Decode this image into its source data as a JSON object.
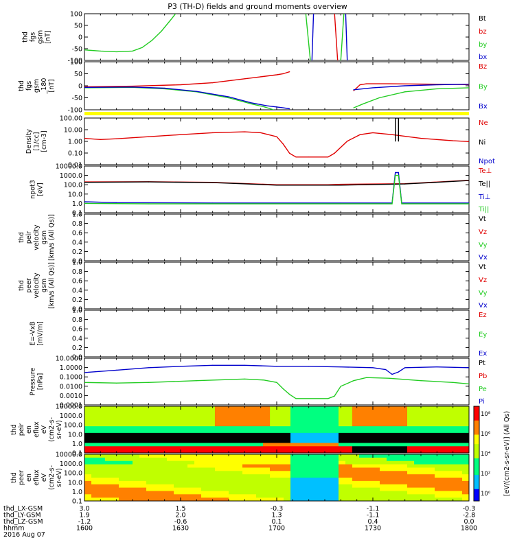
{
  "title": "P3 (TH-D) fields and ground moments overview",
  "colors": {
    "black": "#000000",
    "red": "#e00000",
    "green": "#22cc22",
    "blue": "#0000cc",
    "yellow": "#ffff00"
  },
  "panels": [
    {
      "id": "fgs_gsm",
      "ylabel": [
        "thd",
        "fgs",
        "gsm",
        "[nT]"
      ],
      "yticks": [
        "100",
        "50",
        "0",
        "-50",
        "-100"
      ],
      "legend": [
        {
          "text": "Bt",
          "color": "black"
        },
        {
          "text": "bz",
          "color": "red"
        },
        {
          "text": "by",
          "color": "green"
        },
        {
          "text": "bx",
          "color": "blue"
        }
      ]
    },
    {
      "id": "fgs_gsm_180",
      "ylabel": [
        "thd",
        "fgs",
        "gsm",
        "_180",
        "[nT]"
      ],
      "yticks": [
        "100",
        "50",
        "0",
        "-50",
        "-100"
      ],
      "legend": [
        {
          "text": "Bz",
          "color": "red"
        },
        {
          "text": "By",
          "color": "green"
        },
        {
          "text": "Bx",
          "color": "blue"
        }
      ]
    },
    {
      "id": "density",
      "ylabel": [
        "Density",
        "[1/cc]",
        "[cm-3]"
      ],
      "yticks": [
        "100.00",
        "10.00",
        "1.00",
        "0.10",
        "0.01"
      ],
      "legend": [
        {
          "text": "Ne",
          "color": "red"
        },
        {
          "text": "Ni",
          "color": "black"
        },
        {
          "text": "Npot",
          "color": "blue"
        }
      ]
    },
    {
      "id": "temp",
      "ylabel": [
        "npot3",
        "[eV]"
      ],
      "yticks": [
        "10000.0",
        "1000.0",
        "100.0",
        "10.0",
        "1.0",
        "0.1"
      ],
      "legend": [
        {
          "text": "Te⊥",
          "color": "red"
        },
        {
          "text": "Te||",
          "color": "black"
        },
        {
          "text": "Ti⊥",
          "color": "blue"
        },
        {
          "text": "Ti||",
          "color": "green"
        }
      ]
    },
    {
      "id": "peir_vel",
      "ylabel": [
        "thd",
        "peir",
        "velocity",
        "gsm",
        "[km/s (All Qs)]"
      ],
      "yticks": [
        "1.0",
        "0.8",
        "0.6",
        "0.4",
        "0.2",
        "0.0"
      ],
      "legend": [
        {
          "text": "Vt",
          "color": "black"
        },
        {
          "text": "Vz",
          "color": "red"
        },
        {
          "text": "Vy",
          "color": "green"
        },
        {
          "text": "Vx",
          "color": "blue"
        }
      ]
    },
    {
      "id": "peer_vel",
      "ylabel": [
        "thd",
        "peer",
        "velocity",
        "gsm",
        "[km/s (All Qs)]"
      ],
      "yticks": [
        "1.0",
        "0.8",
        "0.6",
        "0.4",
        "0.2",
        "0.0"
      ],
      "legend": [
        {
          "text": "Vt",
          "color": "black"
        },
        {
          "text": "Vz",
          "color": "red"
        },
        {
          "text": "Vy",
          "color": "green"
        },
        {
          "text": "Vx",
          "color": "blue"
        }
      ]
    },
    {
      "id": "efield",
      "ylabel": [
        "E=-VxB",
        "[mV/m]"
      ],
      "yticks": [
        "1.0",
        "0.8",
        "0.6",
        "0.4",
        "0.2",
        "0.0"
      ],
      "legend": [
        {
          "text": "Ez",
          "color": "red"
        },
        {
          "text": "Ey",
          "color": "green"
        },
        {
          "text": "Ex",
          "color": "blue"
        }
      ]
    },
    {
      "id": "pressure",
      "ylabel": [
        "Pressure",
        "[nPa]"
      ],
      "yticks": [
        "10.0000",
        "1.0000",
        "0.1000",
        "0.0100",
        "0.0010",
        "0.0001"
      ],
      "legend": [
        {
          "text": "Pt",
          "color": "black"
        },
        {
          "text": "Pb",
          "color": "red"
        },
        {
          "text": "Pe",
          "color": "green"
        },
        {
          "text": "Pi",
          "color": "blue"
        }
      ]
    },
    {
      "id": "peir_eflux",
      "ylabel": [
        "thd",
        "peir",
        "en",
        "eflux",
        "eV",
        "(cm2-s-",
        "sr-eV)"
      ],
      "yticks": [
        "10000.0",
        "1000.0",
        "100.0",
        "10.0",
        "1.0",
        "0.1"
      ],
      "legend": []
    },
    {
      "id": "peer_eflux",
      "ylabel": [
        "thd",
        "peer",
        "en",
        "eflux",
        "eV",
        "(cm2-s-",
        "sr-eV)"
      ],
      "yticks": [
        "10000.0",
        "1000.0",
        "100.0",
        "10.0",
        "1.0",
        "0.1"
      ],
      "legend": []
    }
  ],
  "colorbar": {
    "label": "[eV/(cm2-s-sr-eV)] (All Qs)",
    "ticks": [
      "10⁸",
      "10⁶",
      "10⁴",
      "10²",
      "10⁰"
    ]
  },
  "xaxis": {
    "row_labels": [
      "thd_LX-GSM",
      "thd_LY-GSM",
      "thd_LZ-GSM",
      "hhmm",
      "2016 Aug 07"
    ],
    "ticks": [
      {
        "values": [
          "3.0",
          "1.9",
          "-1.2",
          "1600"
        ]
      },
      {
        "values": [
          "1.5",
          "2.0",
          "-0.6",
          "1630"
        ]
      },
      {
        "values": [
          "-0.3",
          "1.3",
          "0.1",
          "1700"
        ]
      },
      {
        "values": [
          "-1.1",
          "-1.1",
          "0.4",
          "1730"
        ]
      },
      {
        "values": [
          "-0.3",
          "-2.8",
          "0.0",
          "1800"
        ]
      }
    ]
  },
  "chart_data": [
    {
      "type": "line",
      "panel": "fgs_gsm",
      "ylim": [
        -100,
        100
      ],
      "x_unit": "minutes after 1600",
      "series": [
        {
          "name": "by",
          "color": "green",
          "points": [
            [
              0,
              -55
            ],
            [
              5,
              -60
            ],
            [
              10,
              -63
            ],
            [
              15,
              -60
            ],
            [
              18,
              -45
            ],
            [
              21,
              -15
            ],
            [
              24,
              25
            ],
            [
              27,
              75
            ],
            [
              29,
              110
            ]
          ]
        },
        {
          "name": "by",
          "color": "green",
          "points": [
            [
              69,
              110
            ],
            [
              70.5,
              -100
            ]
          ]
        },
        {
          "name": "bx",
          "color": "blue",
          "points": [
            [
              71,
              -100
            ],
            [
              71.5,
              110
            ]
          ]
        },
        {
          "name": "bz",
          "color": "red",
          "points": [
            [
              78,
              110
            ],
            [
              79,
              -100
            ]
          ]
        },
        {
          "name": "by",
          "color": "green",
          "points": [
            [
              80,
              -100
            ],
            [
              81,
              110
            ]
          ]
        },
        {
          "name": "bx",
          "color": "blue",
          "points": [
            [
              81.5,
              110
            ],
            [
              82,
              -100
            ]
          ]
        }
      ]
    },
    {
      "type": "line",
      "panel": "fgs_gsm_180",
      "ylim": [
        -120,
        120
      ],
      "x_unit": "minutes after 1600",
      "series": [
        {
          "name": "Bz",
          "color": "red",
          "points": [
            [
              0,
              -5
            ],
            [
              15,
              -2
            ],
            [
              30,
              5
            ],
            [
              40,
              15
            ],
            [
              50,
              35
            ],
            [
              55,
              45
            ],
            [
              60,
              55
            ],
            [
              62,
              60
            ],
            [
              63,
              65
            ],
            [
              64,
              70
            ]
          ]
        },
        {
          "name": "By",
          "color": "green",
          "points": [
            [
              0,
              -10
            ],
            [
              15,
              -8
            ],
            [
              25,
              -15
            ],
            [
              35,
              -30
            ],
            [
              45,
              -60
            ],
            [
              52,
              -90
            ],
            [
              56,
              -105
            ],
            [
              58,
              -115
            ],
            [
              59,
              -120
            ]
          ]
        },
        {
          "name": "Bx",
          "color": "blue",
          "points": [
            [
              0,
              -8
            ],
            [
              15,
              -6
            ],
            [
              25,
              -12
            ],
            [
              35,
              -28
            ],
            [
              45,
              -55
            ],
            [
              52,
              -85
            ],
            [
              57,
              -100
            ],
            [
              62,
              -110
            ],
            [
              64,
              -115
            ]
          ]
        },
        {
          "name": "Bz",
          "color": "red",
          "points": [
            [
              84,
              -25
            ],
            [
              86,
              5
            ],
            [
              88,
              10
            ],
            [
              95,
              10
            ],
            [
              110,
              8
            ],
            [
              120,
              6
            ]
          ]
        },
        {
          "name": "By",
          "color": "green",
          "points": [
            [
              84,
              -110
            ],
            [
              87,
              -90
            ],
            [
              92,
              -60
            ],
            [
              100,
              -30
            ],
            [
              110,
              -15
            ],
            [
              120,
              -10
            ]
          ]
        },
        {
          "name": "Bx",
          "color": "blue",
          "points": [
            [
              84,
              -20
            ],
            [
              90,
              -10
            ],
            [
              100,
              0
            ],
            [
              110,
              5
            ],
            [
              120,
              8
            ]
          ]
        }
      ]
    },
    {
      "type": "line",
      "panel": "density",
      "yscale": "log",
      "ylim": [
        0.003,
        300
      ],
      "x_unit": "minutes after 1600",
      "series": [
        {
          "name": "Ne",
          "color": "red",
          "points": [
            [
              0,
              2
            ],
            [
              5,
              1.5
            ],
            [
              10,
              1.8
            ],
            [
              20,
              3
            ],
            [
              30,
              5
            ],
            [
              40,
              8
            ],
            [
              50,
              10
            ],
            [
              55,
              8
            ],
            [
              60,
              3
            ],
            [
              62,
              0.5
            ],
            [
              64,
              0.05
            ],
            [
              66,
              0.02
            ],
            [
              70,
              0.02
            ],
            [
              76,
              0.02
            ],
            [
              78,
              0.05
            ],
            [
              82,
              1
            ],
            [
              86,
              5
            ],
            [
              90,
              8
            ],
            [
              96,
              5
            ],
            [
              105,
              2
            ],
            [
              115,
              1.1
            ],
            [
              120,
              0.9
            ]
          ]
        },
        {
          "name": "Ni",
          "color": "black",
          "points": [
            [
              97,
              1
            ],
            [
              97,
              300
            ],
            [
              98,
              300
            ],
            [
              98,
              1
            ]
          ]
        }
      ]
    },
    {
      "type": "line",
      "panel": "temp",
      "yscale": "log",
      "ylim": [
        0.1,
        10000
      ],
      "x_unit": "minutes after 1600",
      "series": [
        {
          "name": "Te⊥",
          "color": "red",
          "points": [
            [
              0,
              200
            ],
            [
              20,
              210
            ],
            [
              40,
              180
            ],
            [
              60,
              100
            ],
            [
              64,
              100
            ],
            [
              76,
              100
            ],
            [
              80,
              110
            ],
            [
              100,
              130
            ],
            [
              120,
              300
            ]
          ]
        },
        {
          "name": "Te||",
          "color": "black",
          "points": [
            [
              0,
              180
            ],
            [
              20,
              200
            ],
            [
              40,
              170
            ],
            [
              60,
              90
            ],
            [
              80,
              90
            ],
            [
              100,
              120
            ],
            [
              120,
              280
            ]
          ]
        },
        {
          "name": "Ti⊥",
          "color": "blue",
          "points": [
            [
              0,
              1.5
            ],
            [
              10,
              1.2
            ],
            [
              40,
              1.1
            ],
            [
              80,
              1.1
            ],
            [
              96,
              1.1
            ],
            [
              97,
              2000
            ],
            [
              98,
              2000
            ],
            [
              99,
              1.1
            ],
            [
              120,
              1.1
            ]
          ]
        },
        {
          "name": "Ti||",
          "color": "green",
          "points": [
            [
              0,
              1.0
            ],
            [
              20,
              0.9
            ],
            [
              80,
              0.9
            ],
            [
              96,
              0.9
            ],
            [
              97,
              1000
            ],
            [
              98,
              1000
            ],
            [
              99,
              0.9
            ],
            [
              120,
              0.9
            ]
          ]
        }
      ]
    },
    {
      "type": "line",
      "panel": "pressure",
      "yscale": "log",
      "ylim": [
        5e-05,
        30
      ],
      "x_unit": "minutes after 1600",
      "series": [
        {
          "name": "Pt",
          "color": "blue",
          "points": [
            [
              0,
              0.5
            ],
            [
              10,
              1.0
            ],
            [
              20,
              2
            ],
            [
              30,
              3
            ],
            [
              40,
              4
            ],
            [
              50,
              4
            ],
            [
              60,
              3
            ],
            [
              70,
              3
            ],
            [
              80,
              2.5
            ],
            [
              90,
              2
            ],
            [
              94,
              1.2
            ],
            [
              96,
              0.3
            ],
            [
              98,
              0.6
            ],
            [
              100,
              2
            ],
            [
              110,
              2.5
            ],
            [
              120,
              2
            ]
          ]
        },
        {
          "name": "Pe",
          "color": "green",
          "points": [
            [
              0,
              0.03
            ],
            [
              10,
              0.025
            ],
            [
              20,
              0.03
            ],
            [
              35,
              0.05
            ],
            [
              50,
              0.08
            ],
            [
              56,
              0.06
            ],
            [
              60,
              0.03
            ],
            [
              62,
              0.005
            ],
            [
              64,
              0.001
            ],
            [
              66,
              0.0003
            ],
            [
              76,
              0.0003
            ],
            [
              78,
              0.0006
            ],
            [
              80,
              0.01
            ],
            [
              84,
              0.05
            ],
            [
              88,
              0.12
            ],
            [
              95,
              0.1
            ],
            [
              105,
              0.05
            ],
            [
              115,
              0.03
            ],
            [
              120,
              0.02
            ]
          ]
        }
      ]
    },
    {
      "type": "heatmap",
      "panel": "peir_eflux",
      "yscale": "log",
      "ylim": [
        0.1,
        30000
      ],
      "colorscale": "rainbow",
      "zlim": [
        1,
        100000000
      ]
    },
    {
      "type": "heatmap",
      "panel": "peer_eflux",
      "yscale": "log",
      "ylim": [
        0.1,
        30000
      ],
      "colorscale": "rainbow",
      "zlim": [
        1,
        100000000
      ]
    }
  ]
}
